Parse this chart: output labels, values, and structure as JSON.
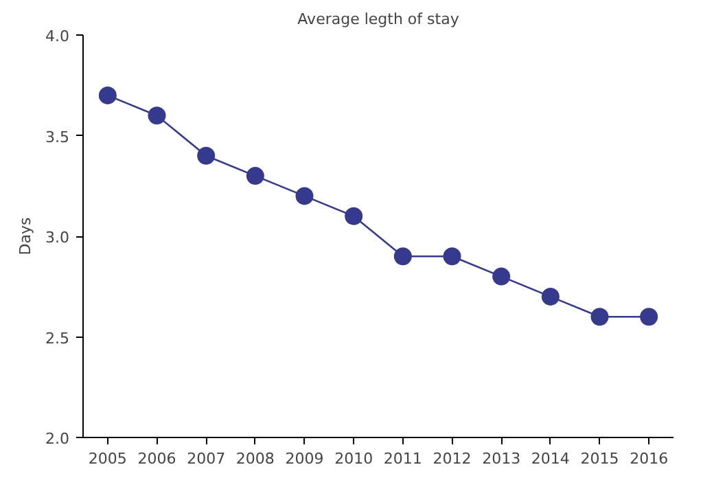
{
  "chart_data": {
    "type": "line",
    "title": "Average legth of stay",
    "ylabel": "Days",
    "categories": [
      "2005",
      "2006",
      "2007",
      "2008",
      "2009",
      "2010",
      "2011",
      "2012",
      "2013",
      "2014",
      "2015",
      "2016"
    ],
    "series": [
      {
        "color": "#363a8e",
        "values": [
          3.7,
          3.6,
          3.4,
          3.3,
          3.2,
          3.1,
          2.9,
          2.9,
          2.8,
          2.7,
          2.6,
          2.6
        ]
      }
    ],
    "ylim": [
      2.0,
      4.0
    ],
    "yticks": [
      {
        "value": 2.0,
        "label": "2.0"
      },
      {
        "value": 2.5,
        "label": "2.5"
      },
      {
        "value": 3.0,
        "label": "3.0"
      },
      {
        "value": 3.5,
        "label": "3.5"
      },
      {
        "value": 4.0,
        "label": "4.0"
      }
    ],
    "grid": false,
    "marker": "circle",
    "line_style": "solid"
  }
}
